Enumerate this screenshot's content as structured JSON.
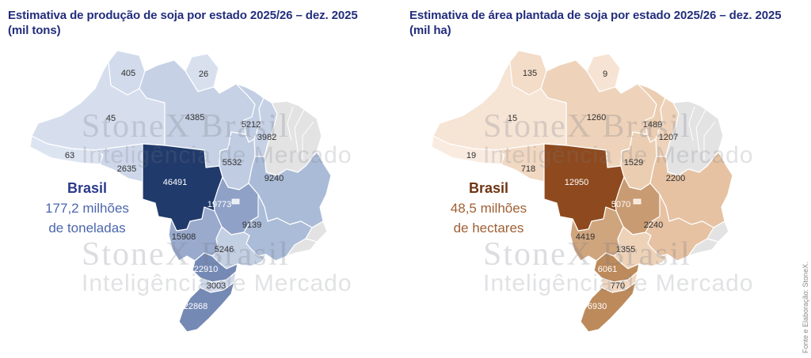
{
  "source_note": "Fonte e Elaboração: StoneX.",
  "watermark": {
    "line1": "StoneX Brasil",
    "line2": "Inteligência de Mercado"
  },
  "panels": [
    {
      "title": "Estimativa de produção de soja por estado 2025/26 – dez. 2025",
      "subtitle": "(mil tons)",
      "title_color": "#222d7c",
      "unit": "mil tons",
      "annotation": {
        "country": "Brasil",
        "value_line1": "177,2 milhões",
        "value_line2": "de toneladas",
        "country_color": "#2c3a8a",
        "value_color": "#4c66ae"
      },
      "no_data_fill": "#e3e3e4",
      "states": {
        "RR": {
          "name": "Roraima",
          "value": "405",
          "fill": "#d2dbeb",
          "label_color": "#2f2f2f"
        },
        "AP": {
          "name": "Amapá",
          "value": "26",
          "fill": "#d8e0ee",
          "label_color": "#2f2f2f"
        },
        "AM": {
          "name": "Amazonas",
          "value": "45",
          "fill": "#d6deee",
          "label_color": "#2f2f2f"
        },
        "PA": {
          "name": "Pará",
          "value": "4385",
          "fill": "#c6d1e5",
          "label_color": "#2f2f2f"
        },
        "MA": {
          "name": "Maranhão",
          "value": "5212",
          "fill": "#c2cee3",
          "label_color": "#2f2f2f"
        },
        "PI": {
          "name": "Piauí",
          "value": "3982",
          "fill": "#c6d1e5",
          "label_color": "#2f2f2f"
        },
        "AC": {
          "name": "Acre",
          "value": "63",
          "fill": "#dde4f1",
          "label_color": "#2f2f2f"
        },
        "RO": {
          "name": "Rondônia",
          "value": "2635",
          "fill": "#cdd7e9",
          "label_color": "#2f2f2f"
        },
        "TO": {
          "name": "Tocantins",
          "value": "5532",
          "fill": "#c0cce2",
          "label_color": "#2f2f2f"
        },
        "BA": {
          "name": "Bahia",
          "value": "9240",
          "fill": "#aabbd7",
          "label_color": "#2f2f2f"
        },
        "MT": {
          "name": "Mato Grosso",
          "value": "46491",
          "fill": "#203a6b",
          "label_color": "#ffffff"
        },
        "GO": {
          "name": "Goiás",
          "value": "19773",
          "fill": "#8fa1c6",
          "label_color": "#ffffff"
        },
        "DF": {
          "name": "Distrito Federal",
          "value": "",
          "fill": "#e9edf6",
          "label_color": "#2f2f2f"
        },
        "MG": {
          "name": "Minas Gerais",
          "value": "9139",
          "fill": "#abbcd8",
          "label_color": "#2f2f2f"
        },
        "MS": {
          "name": "Mato Grosso do Sul",
          "value": "15908",
          "fill": "#99aacd",
          "label_color": "#2f2f2f"
        },
        "SP": {
          "name": "São Paulo",
          "value": "5246",
          "fill": "#c3cfe3",
          "label_color": "#2f2f2f"
        },
        "PR": {
          "name": "Paraná",
          "value": "22910",
          "fill": "#7589b5",
          "label_color": "#ffffff"
        },
        "SC": {
          "name": "Santa Catarina",
          "value": "3003",
          "fill": "#cfd9ea",
          "label_color": "#2f2f2f"
        },
        "RS": {
          "name": "Rio Grande do Sul",
          "value": "22868",
          "fill": "#7589b5",
          "label_color": "#ffffff"
        }
      }
    },
    {
      "title": "Estimativa de área plantada de soja por estado 2025/26 – dez. 2025",
      "subtitle": "(mil ha)",
      "title_color": "#222d7c",
      "unit": "mil ha",
      "annotation": {
        "country": "Brasil",
        "value_line1": "48,5 milhões",
        "value_line2": "de hectares",
        "country_color": "#6f3512",
        "value_color": "#a05f33"
      },
      "no_data_fill": "#e3e3e4",
      "states": {
        "RR": {
          "name": "Roraima",
          "value": "135",
          "fill": "#f3dcc8",
          "label_color": "#2f2f2f"
        },
        "AP": {
          "name": "Amapá",
          "value": "9",
          "fill": "#f6e3d3",
          "label_color": "#2f2f2f"
        },
        "AM": {
          "name": "Amazonas",
          "value": "15",
          "fill": "#f6e4d5",
          "label_color": "#2f2f2f"
        },
        "PA": {
          "name": "Pará",
          "value": "1260",
          "fill": "#eed3ba",
          "label_color": "#2f2f2f"
        },
        "MA": {
          "name": "Maranhão",
          "value": "1489",
          "fill": "#ebceb2",
          "label_color": "#2f2f2f"
        },
        "PI": {
          "name": "Piauí",
          "value": "1207",
          "fill": "#eed3ba",
          "label_color": "#2f2f2f"
        },
        "AC": {
          "name": "Acre",
          "value": "19",
          "fill": "#f9ebdf",
          "label_color": "#2f2f2f"
        },
        "RO": {
          "name": "Rondônia",
          "value": "718",
          "fill": "#f1d8c2",
          "label_color": "#2f2f2f"
        },
        "TO": {
          "name": "Tocantins",
          "value": "1529",
          "fill": "#ebceb2",
          "label_color": "#2f2f2f"
        },
        "BA": {
          "name": "Bahia",
          "value": "2200",
          "fill": "#e6c2a2",
          "label_color": "#2f2f2f"
        },
        "MT": {
          "name": "Mato Grosso",
          "value": "12950",
          "fill": "#8e4a1e",
          "label_color": "#ffffff"
        },
        "GO": {
          "name": "Goiás",
          "value": "5070",
          "fill": "#c99b72",
          "label_color": "#ffffff"
        },
        "DF": {
          "name": "Distrito Federal",
          "value": "",
          "fill": "#f8e8db",
          "label_color": "#2f2f2f"
        },
        "MG": {
          "name": "Minas Gerais",
          "value": "2240",
          "fill": "#e6c2a2",
          "label_color": "#2f2f2f"
        },
        "MS": {
          "name": "Mato Grosso do Sul",
          "value": "4419",
          "fill": "#cfa57e",
          "label_color": "#2f2f2f"
        },
        "SP": {
          "name": "São Paulo",
          "value": "1355",
          "fill": "#edd2b8",
          "label_color": "#2f2f2f"
        },
        "PR": {
          "name": "Paraná",
          "value": "6061",
          "fill": "#bd8a5b",
          "label_color": "#ffffff"
        },
        "SC": {
          "name": "Santa Catarina",
          "value": "770",
          "fill": "#f0d7c1",
          "label_color": "#2f2f2f"
        },
        "RS": {
          "name": "Rio Grande do Sul",
          "value": "6930",
          "fill": "#bd8a5b",
          "label_color": "#ffffff"
        }
      }
    }
  ],
  "chart_data": [
    {
      "type": "heatmap",
      "subtype": "choropleth-map-brazil",
      "title": "Estimativa de produção de soja por estado 2025/26 – dez. 2025 (mil tons)",
      "unit": "mil tons",
      "total_label": "Brasil 177,2 milhões de toneladas",
      "categories": [
        "RR",
        "AP",
        "AM",
        "PA",
        "MA",
        "PI",
        "AC",
        "RO",
        "TO",
        "BA",
        "MT",
        "GO",
        "MG",
        "MS",
        "SP",
        "PR",
        "SC",
        "RS"
      ],
      "values": [
        405,
        26,
        45,
        4385,
        5212,
        3982,
        63,
        2635,
        5532,
        9240,
        46491,
        19773,
        9139,
        15908,
        5246,
        22910,
        3003,
        22868
      ],
      "no_data_states": [
        "CE",
        "RN",
        "PB",
        "PE",
        "AL",
        "SE",
        "ES",
        "RJ"
      ],
      "color_scale": [
        "#dde4f1",
        "#203a6b"
      ],
      "legend": "none"
    },
    {
      "type": "heatmap",
      "subtype": "choropleth-map-brazil",
      "title": "Estimativa de área plantada de soja por estado 2025/26 – dez. 2025 (mil ha)",
      "unit": "mil ha",
      "total_label": "Brasil 48,5 milhões de hectares",
      "categories": [
        "RR",
        "AP",
        "AM",
        "PA",
        "MA",
        "PI",
        "AC",
        "RO",
        "TO",
        "BA",
        "MT",
        "GO",
        "MG",
        "MS",
        "SP",
        "PR",
        "SC",
        "RS"
      ],
      "values": [
        135,
        9,
        15,
        1260,
        1489,
        1207,
        19,
        718,
        1529,
        2200,
        12950,
        5070,
        2240,
        4419,
        1355,
        6061,
        770,
        6930
      ],
      "no_data_states": [
        "CE",
        "RN",
        "PB",
        "PE",
        "AL",
        "SE",
        "ES",
        "RJ"
      ],
      "color_scale": [
        "#f9ebdf",
        "#8e4a1e"
      ],
      "legend": "none"
    }
  ]
}
